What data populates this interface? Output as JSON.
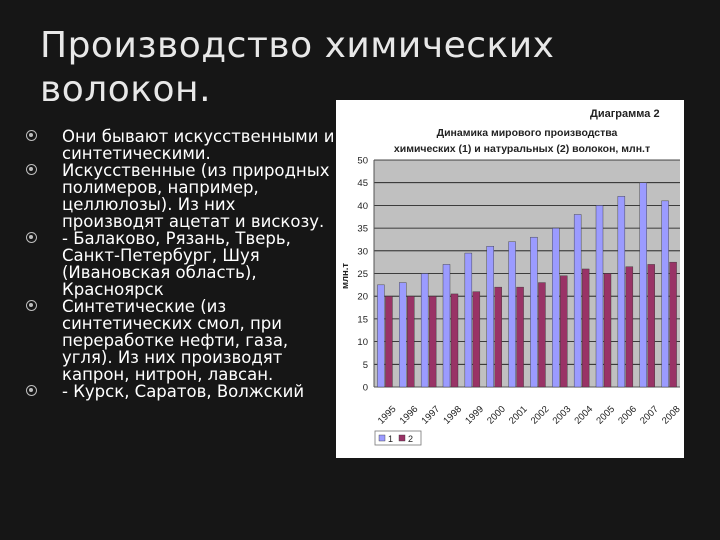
{
  "slide": {
    "title_line1": "Производство химических",
    "title_line2": "волокон.",
    "bullets": [
      "Они бывают искусственными и синтетическими.",
      "Искусственные (из природных полимеров, например, целлюлозы). Из них производят ацетат и вискозу.",
      "- Балаково, Рязань, Тверь, Санкт-Петербург, Шуя (Ивановская область), Красноярск",
      "Синтетические (из синтетических смол, при переработке нефти, газа, угля). Из них производят капрон, нитрон, лавсан.",
      "- Курск, Саратов, Волжский"
    ]
  },
  "chart_data": {
    "type": "bar",
    "label": "Диаграмма 2",
    "title_line1": "Динамика мирового производства",
    "title_line2": "химических (1) и натуральных (2) волокон, млн.т",
    "ylabel": "млн.т",
    "ylim": [
      0,
      50
    ],
    "yticks": [
      "0",
      "5",
      "10",
      "15",
      "20",
      "25",
      "30",
      "35",
      "40",
      "45",
      "50"
    ],
    "categories": [
      "1995",
      "1996",
      "1997",
      "1998",
      "1999",
      "2000",
      "2001",
      "2002",
      "2003",
      "2004",
      "2005",
      "2006",
      "2007",
      "2008"
    ],
    "series": [
      {
        "name": "1",
        "values": [
          22.5,
          23,
          25,
          27,
          29.5,
          31,
          32,
          33,
          35,
          38,
          40,
          42,
          45,
          41
        ]
      },
      {
        "name": "2",
        "values": [
          20,
          20,
          20,
          20.5,
          21,
          22,
          22,
          23,
          24.5,
          26,
          25,
          26.5,
          27,
          27.5
        ]
      }
    ],
    "colors": {
      "series1": "#9b9bff",
      "series2": "#993366",
      "plot_bg": "#c0c0c0",
      "panel_bg": "#ffffff"
    },
    "grid": true,
    "legend_position": "bottom-left"
  }
}
